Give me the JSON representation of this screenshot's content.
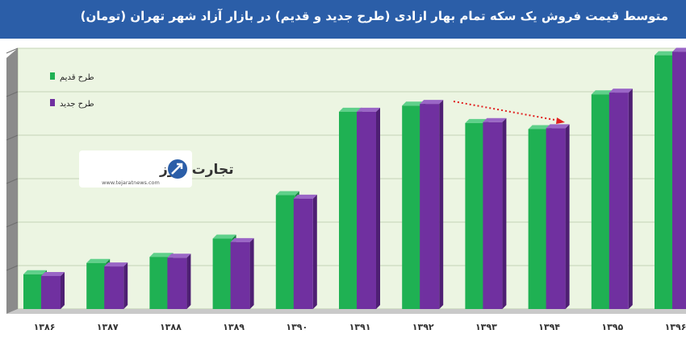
{
  "title": "متوسط قیمت فروش یک سکه تمام بهار ازادی (طرح جدید و قدیم) در بازار آزاد شهر تهران (تومان)",
  "logo": {
    "text": "تجارت نیوز",
    "url": "www.tejaratnews.com"
  },
  "colors": {
    "old": "#1fb153",
    "new": "#7030a0",
    "plot_bg": "#ecf5e2",
    "title_bg": "#2b5ea8",
    "arrow": "#e02020"
  },
  "chart_data": {
    "type": "bar",
    "title": "متوسط قیمت فروش یک سکه تمام بهار ازادی (طرح جدید و قدیم) در بازار آزاد شهر تهران (تومان)",
    "categories": [
      "۱۳۸۶",
      "۱۳۸۷",
      "۱۳۸۸",
      "۱۳۸۹",
      "۱۳۹۰",
      "۱۳۹۱",
      "۱۳۹۲",
      "۱۳۹۳",
      "۱۳۹۴",
      "۱۳۹۵",
      "۱۳۹۶"
    ],
    "series": [
      {
        "name": "طرح قدیم",
        "values": [
          40,
          53,
          60,
          81,
          131,
          227,
          234,
          214,
          207,
          247,
          292
        ]
      },
      {
        "name": "طرح جدید",
        "values": [
          38,
          49,
          59,
          77,
          127,
          227,
          236,
          215,
          208,
          249,
          296
        ]
      }
    ],
    "ylim": [
      0,
      300
    ],
    "y_axis_labels": false,
    "grid": true,
    "legend": "top-left",
    "annotation": "red dotted arrow indicating decline from ۱۳۹۲ to ۱۳۹۴"
  }
}
